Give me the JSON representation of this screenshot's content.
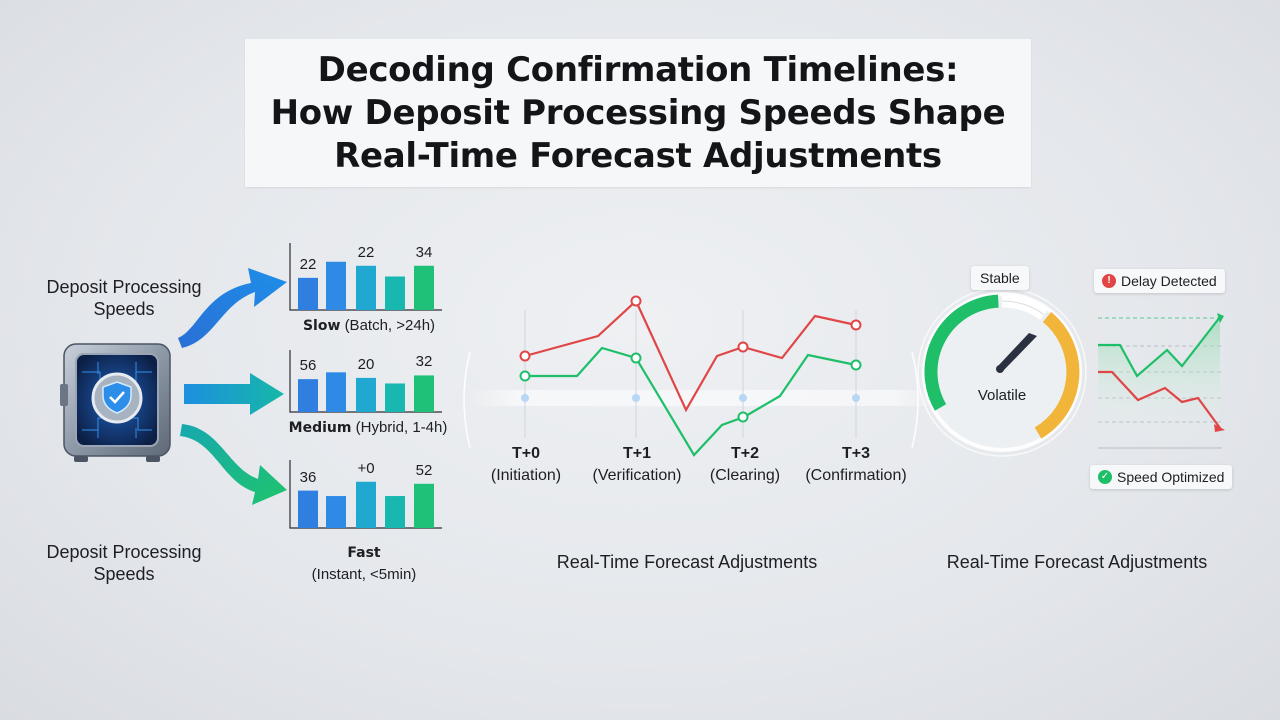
{
  "title": {
    "line1": "Decoding Confirmation Timelines:",
    "line2": "How Deposit Processing Speeds Shape",
    "line3": "Real-Time Forecast Adjustments"
  },
  "left": {
    "label_top": "Deposit Processing Speeds",
    "label_bottom": "Deposit Processing Speeds",
    "vault_icon": "vault-shield-icon"
  },
  "colors": {
    "blue": "#2f80e0",
    "teal": "#17b6b0",
    "green": "#1fbf6a",
    "red": "#e04646",
    "orange": "#f1b53a"
  },
  "chart_data": [
    {
      "type": "bar",
      "name": "Slow",
      "label_bold": "Slow",
      "label_rest": "(Batch, >24h)",
      "values": [
        22,
        22,
        34
      ],
      "data_labels": [
        "22",
        "22",
        "34"
      ]
    },
    {
      "type": "bar",
      "name": "Medium",
      "label_bold": "Medium",
      "label_rest": "(Hybrid, 1-4h)",
      "values": [
        56,
        20,
        32
      ],
      "data_labels": [
        "56",
        "20",
        "32"
      ]
    },
    {
      "type": "bar",
      "name": "Fast",
      "label_bold": "Fast",
      "label_rest": "(Instant, <5min)",
      "values": [
        36,
        0,
        52
      ],
      "data_labels": [
        "36",
        "+0",
        "52"
      ]
    },
    {
      "type": "line",
      "categories": [
        "T+0",
        "T+1",
        "T+2",
        "T+3"
      ],
      "category_subs": [
        "(Initiation)",
        "(Verification)",
        "(Clearing)",
        "(Confirmation)"
      ],
      "xlabel": "Real-Time Forecast Adjustments"
    }
  ],
  "gauge": {
    "top_label": "Stable",
    "center_label": "Volatile",
    "caption": "Real-Time Forecast Adjustments"
  },
  "trend": {
    "alert_top": "Delay Detected",
    "alert_bottom": "Speed Optimized"
  }
}
